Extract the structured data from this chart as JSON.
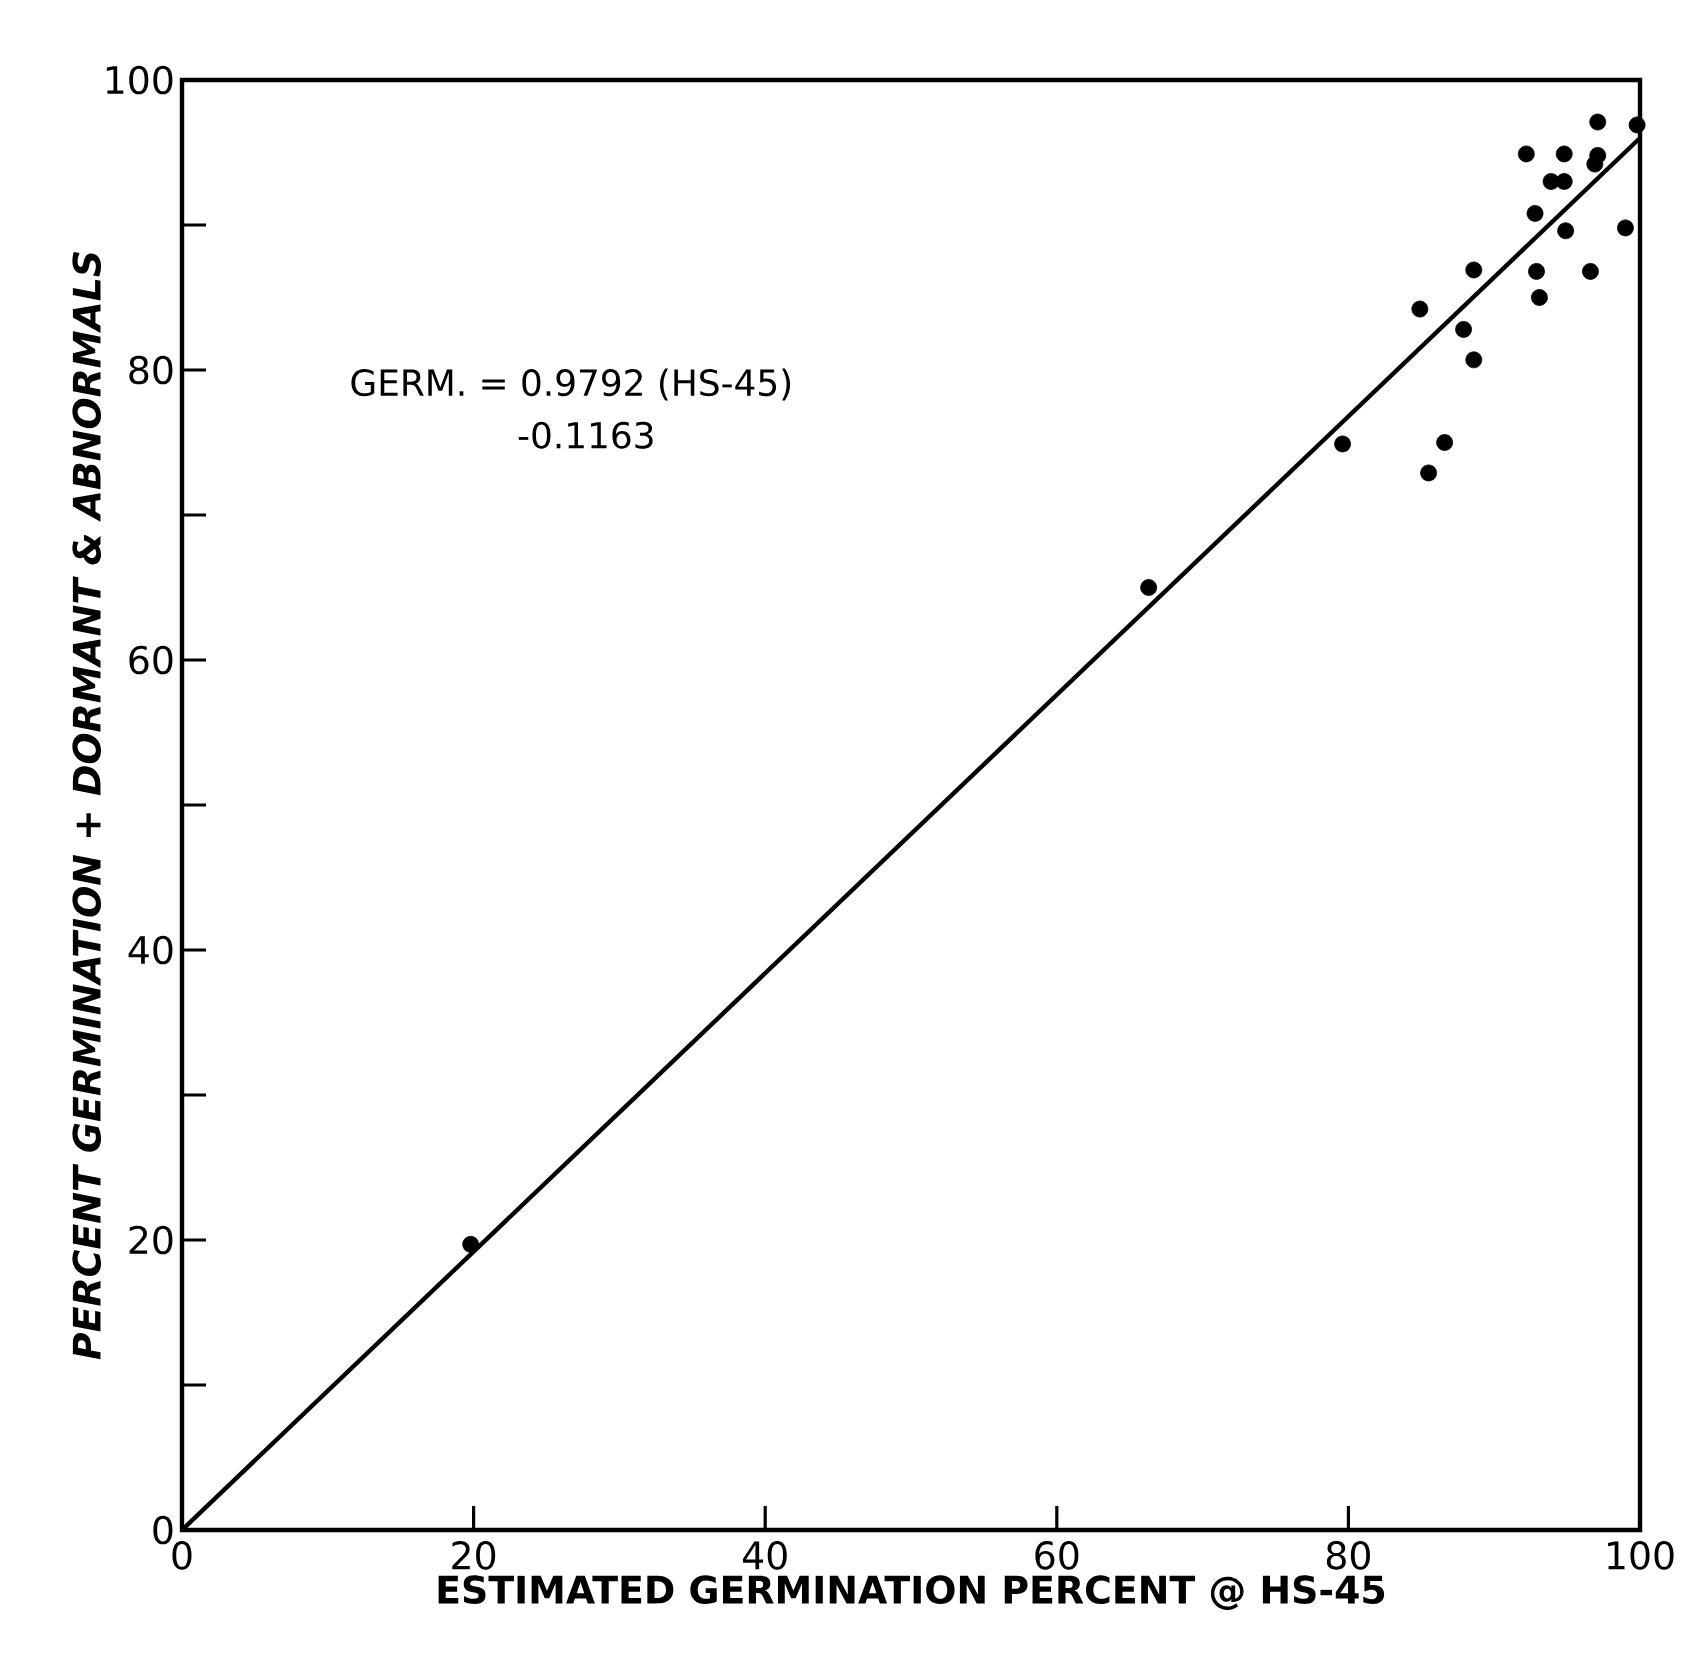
{
  "chart_data": {
    "type": "scatter",
    "xlabel": "ESTIMATED GERMINATION PERCENT @ HS-45",
    "ylabel": "PERCENT GERMINATION + DORMANT & ABNORMALS",
    "annotations": [
      "GERM. = 0.9792 (HS-45)",
      "-0.1163"
    ],
    "xlim": [
      0,
      100
    ],
    "ylim": [
      0,
      100
    ],
    "xticks": [
      0,
      20,
      40,
      60,
      80,
      100
    ],
    "yticks": [
      0,
      {
        "value": 10,
        "label": null
      },
      20,
      {
        "value": 30,
        "label": null
      },
      40,
      {
        "value": 50,
        "label": null
      },
      60,
      {
        "value": 70,
        "label": null
      },
      80,
      {
        "value": 90,
        "label": null
      },
      100
    ],
    "series": [
      {
        "marker": "circle",
        "color": "#000000",
        "x": [
          19.8,
          66.3,
          79.6,
          97.1,
          99.8,
          92.2,
          94.8,
          97.1,
          96.9,
          93.9,
          94.8,
          92.8,
          94.9,
          99.0,
          88.6,
          92.9,
          96.6,
          84.9,
          93.1,
          87.9,
          88.6,
          86.6,
          85.5
        ],
        "values": [
          19.7,
          65.0,
          74.9,
          97.1,
          96.9,
          94.9,
          94.9,
          94.8,
          94.2,
          93.0,
          93.0,
          90.8,
          89.6,
          89.8,
          86.9,
          86.8,
          86.8,
          84.2,
          85.0,
          82.8,
          80.7,
          75.0,
          72.9
        ]
      },
      {
        "type": "line",
        "marker": "none",
        "color": "#000000",
        "x": [
          0,
          100
        ],
        "values": [
          0,
          96
        ]
      }
    ]
  }
}
